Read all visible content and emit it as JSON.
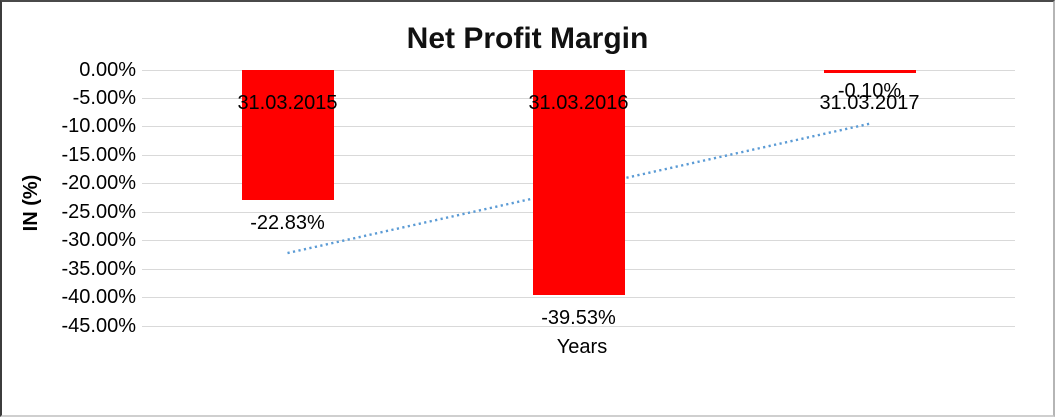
{
  "chart_data": {
    "type": "bar",
    "title": "Net Profit Margin",
    "xlabel": "Years",
    "ylabel": "IN (%)",
    "categories": [
      "31.03.2015",
      "31.03.2016",
      "31.03.2017"
    ],
    "values": [
      -22.83,
      -39.53,
      -0.1
    ],
    "data_labels": [
      "-22.83%",
      "-39.53%",
      "-0.10%"
    ],
    "ytick_labels": [
      "0.00%",
      "-5.00%",
      "-10.00%",
      "-15.00%",
      "-20.00%",
      "-25.00%",
      "-30.00%",
      "-35.00%",
      "-40.00%",
      "-45.00%"
    ],
    "ylim": [
      -45,
      0
    ],
    "ytick_step": 5,
    "grid": true,
    "legend": "none",
    "bar_color": "#FF0000",
    "gridline_color": "#D9D9D9",
    "background_color": "#FFFFFF",
    "text_color": "#000000",
    "trendline": {
      "type": "linear",
      "style": "dotted",
      "color": "#5B9BD5",
      "start_value": -32.18,
      "end_value": -9.45
    }
  }
}
